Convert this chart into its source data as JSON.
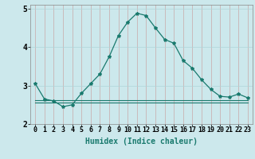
{
  "xlabel": "Humidex (Indice chaleur)",
  "background_color": "#cce8ec",
  "line_color": "#1a7a6e",
  "x": [
    0,
    1,
    2,
    3,
    4,
    5,
    6,
    7,
    8,
    9,
    10,
    11,
    12,
    13,
    14,
    15,
    16,
    17,
    18,
    19,
    20,
    21,
    22,
    23
  ],
  "y_main": [
    3.05,
    2.65,
    2.6,
    2.45,
    2.5,
    2.8,
    3.05,
    3.3,
    3.75,
    4.3,
    4.65,
    4.88,
    4.82,
    4.5,
    4.2,
    4.1,
    3.65,
    3.45,
    3.15,
    2.9,
    2.72,
    2.7,
    2.78,
    2.68
  ],
  "y_flat1": [
    2.62,
    2.62,
    2.62,
    2.62,
    2.62,
    2.62,
    2.62,
    2.62,
    2.62,
    2.62,
    2.62,
    2.62,
    2.62,
    2.62,
    2.62,
    2.62,
    2.62,
    2.62,
    2.62,
    2.62,
    2.62,
    2.62,
    2.62,
    2.62
  ],
  "y_flat2": [
    2.55,
    2.55,
    2.55,
    2.55,
    2.55,
    2.55,
    2.55,
    2.55,
    2.55,
    2.55,
    2.55,
    2.55,
    2.55,
    2.55,
    2.55,
    2.55,
    2.55,
    2.55,
    2.55,
    2.55,
    2.55,
    2.55,
    2.55,
    2.55
  ],
  "ylim": [
    2.0,
    5.1
  ],
  "yticks": [
    2,
    3,
    4,
    5
  ],
  "grid_color": "#aed4d8",
  "label_fontsize": 7,
  "tick_fontsize": 6
}
